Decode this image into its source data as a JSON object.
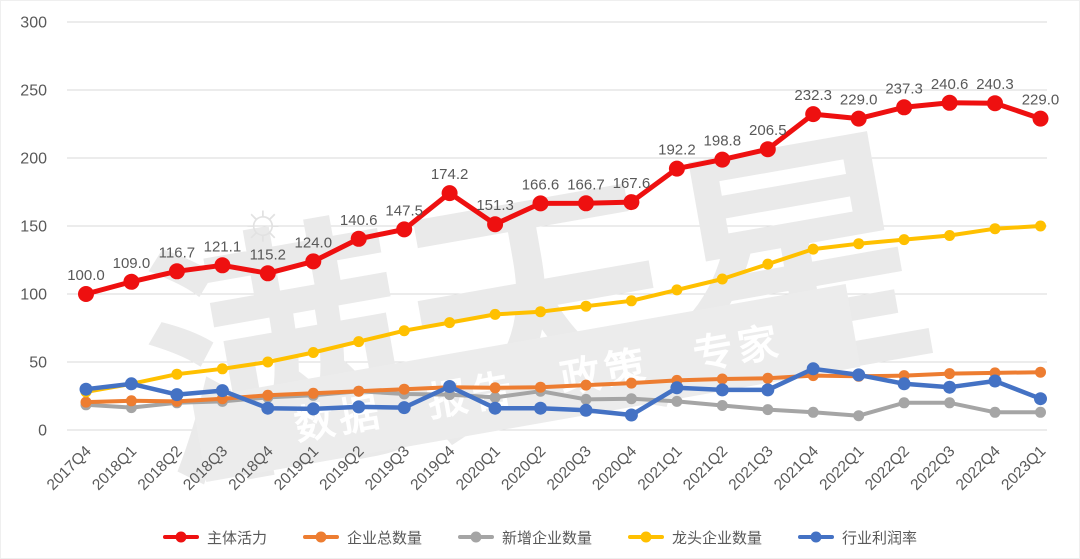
{
  "chart_data": {
    "type": "line",
    "title": "",
    "categories": [
      "2017Q4",
      "2018Q1",
      "2018Q2",
      "2018Q3",
      "2018Q4",
      "2019Q1",
      "2019Q2",
      "2019Q3",
      "2019Q4",
      "2020Q1",
      "2020Q2",
      "2020Q3",
      "2020Q4",
      "2021Q1",
      "2021Q2",
      "2021Q3",
      "2021Q4",
      "2022Q1",
      "2022Q2",
      "2022Q3",
      "2022Q4",
      "2023Q1"
    ],
    "y_axis": {
      "min": 0,
      "max": 300,
      "step": 50,
      "ticks": [
        0,
        50,
        100,
        150,
        200,
        250,
        300
      ]
    },
    "grid": true,
    "legend_position": "bottom",
    "series": [
      {
        "name": "主体活力",
        "color": "#ee1010",
        "stroke_width": 5,
        "marker_r": 8,
        "show_labels": true,
        "values": [
          100.0,
          109.0,
          116.7,
          121.1,
          115.2,
          124.0,
          140.6,
          147.5,
          174.2,
          151.3,
          166.6,
          166.7,
          167.6,
          192.2,
          198.8,
          206.5,
          232.3,
          229.0,
          237.3,
          240.6,
          240.3,
          229.0
        ],
        "labels": [
          "100.0",
          "109.0",
          "116.7",
          "121.1",
          "115.2",
          "124.0",
          "140.6",
          "147.5",
          "174.2",
          "151.3",
          "166.6",
          "166.7",
          "167.6",
          "192.2",
          "198.8",
          "206.5",
          "232.3",
          "229.0",
          "237.3",
          "240.6",
          "240.3",
          "229.0"
        ]
      },
      {
        "name": "企业总数量",
        "color": "#ED7D31",
        "stroke_width": 4,
        "marker_r": 5.5,
        "show_labels": false,
        "values": [
          20.5,
          21.5,
          21,
          23,
          25.5,
          27,
          28.5,
          30,
          31.5,
          31,
          31.5,
          33,
          34.5,
          36.5,
          37.5,
          38,
          40,
          39.5,
          40,
          41.5,
          42,
          42.5
        ]
      },
      {
        "name": "新增企业数量",
        "color": "#A5A5A5",
        "stroke_width": 4,
        "marker_r": 5.5,
        "show_labels": false,
        "values": [
          18.5,
          16.5,
          20,
          21,
          24,
          25.5,
          28.5,
          26.5,
          26,
          24,
          28.5,
          22.5,
          23,
          21,
          18,
          15,
          13,
          10.5,
          20,
          20,
          13,
          13
        ]
      },
      {
        "name": "龙头企业数量",
        "color": "#FFC000",
        "stroke_width": 4,
        "marker_r": 5.5,
        "show_labels": false,
        "values": [
          28,
          34,
          41,
          45,
          50,
          57,
          65,
          73,
          79,
          85,
          87,
          91,
          95,
          103,
          111,
          122,
          133,
          137,
          140,
          143,
          148,
          150
        ]
      },
      {
        "name": "行业利润率",
        "color": "#4472C4",
        "stroke_width": 4.5,
        "marker_r": 6.5,
        "show_labels": false,
        "values": [
          30,
          34,
          26,
          29,
          16,
          15.5,
          17,
          16.5,
          32,
          16,
          16,
          14.5,
          11,
          31,
          29.5,
          29.5,
          45,
          40.5,
          34,
          31.5,
          36,
          23
        ]
      }
    ]
  },
  "watermark": {
    "big_text": "满天星",
    "slogan": "数据　报告　政策　专家",
    "sun_icon": "☼"
  }
}
